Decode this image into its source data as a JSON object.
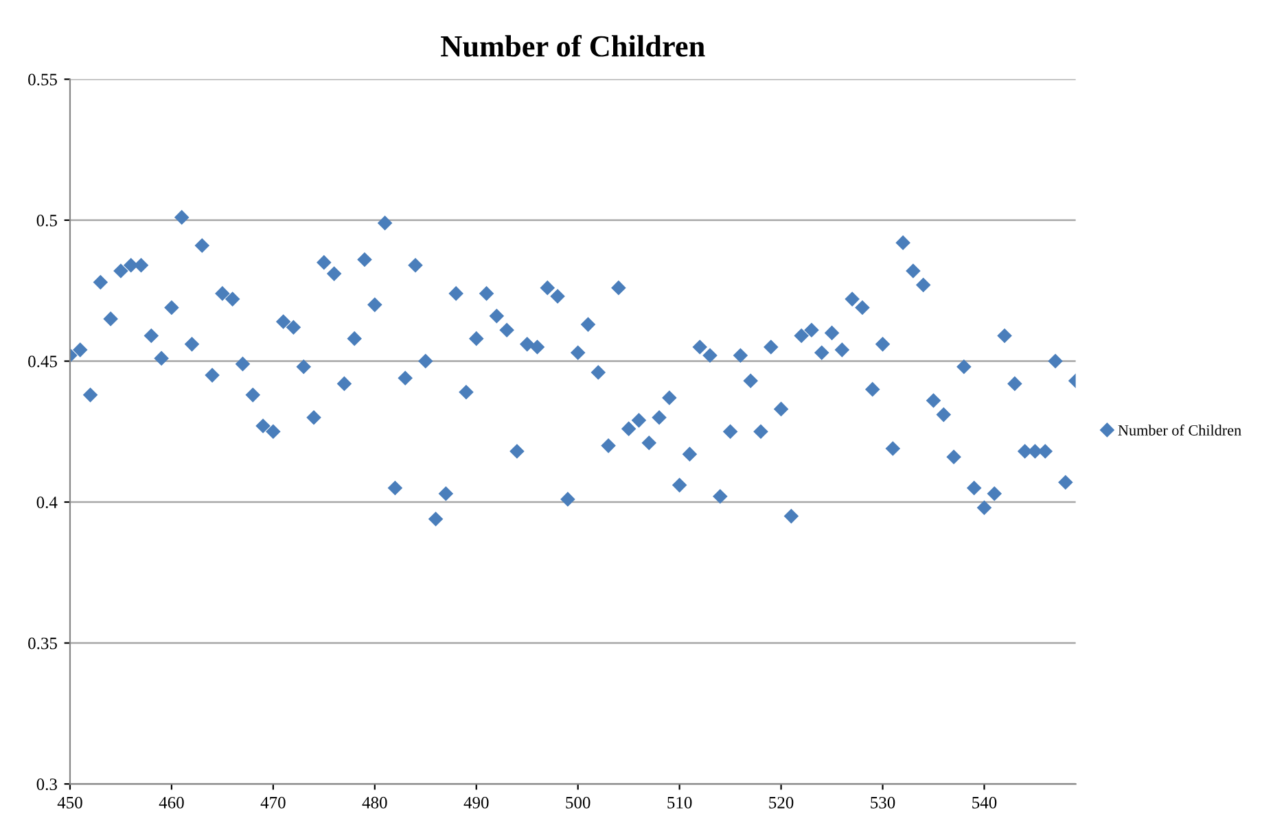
{
  "chart_data": {
    "type": "scatter",
    "title": "Number of Children",
    "x": [
      450,
      451,
      452,
      453,
      454,
      455,
      456,
      457,
      458,
      459,
      460,
      461,
      462,
      463,
      464,
      465,
      466,
      467,
      468,
      469,
      470,
      471,
      472,
      473,
      474,
      475,
      476,
      477,
      478,
      479,
      480,
      481,
      482,
      483,
      484,
      485,
      486,
      487,
      488,
      489,
      490,
      491,
      492,
      493,
      494,
      495,
      496,
      497,
      498,
      499,
      500,
      501,
      502,
      503,
      504,
      505,
      506,
      507,
      508,
      509,
      510,
      511,
      512,
      513,
      514,
      515,
      516,
      517,
      518,
      519,
      520,
      521,
      522,
      523,
      524,
      525,
      526,
      527,
      528,
      529,
      530,
      531,
      532,
      533,
      534,
      535,
      536,
      537,
      538,
      539,
      540,
      541,
      542,
      543,
      544,
      545,
      546,
      547,
      548,
      549
    ],
    "series": [
      {
        "name": "Number of Children",
        "color": "#4a7ebb",
        "values": [
          0.452,
          0.454,
          0.438,
          0.478,
          0.465,
          0.482,
          0.484,
          0.484,
          0.459,
          0.451,
          0.469,
          0.501,
          0.456,
          0.491,
          0.445,
          0.474,
          0.472,
          0.449,
          0.438,
          0.427,
          0.425,
          0.464,
          0.462,
          0.448,
          0.43,
          0.485,
          0.481,
          0.442,
          0.458,
          0.486,
          0.47,
          0.499,
          0.405,
          0.444,
          0.484,
          0.45,
          0.394,
          0.403,
          0.474,
          0.439,
          0.458,
          0.474,
          0.466,
          0.461,
          0.418,
          0.456,
          0.455,
          0.476,
          0.473,
          0.401,
          0.453,
          0.463,
          0.446,
          0.42,
          0.476,
          0.426,
          0.429,
          0.421,
          0.43,
          0.437,
          0.406,
          0.417,
          0.455,
          0.452,
          0.402,
          0.425,
          0.452,
          0.443,
          0.425,
          0.455,
          0.433,
          0.395,
          0.459,
          0.461,
          0.453,
          0.46,
          0.454,
          0.472,
          0.469,
          0.44,
          0.456,
          0.419,
          0.492,
          0.482,
          0.477,
          0.436,
          0.431,
          0.416,
          0.448,
          0.405,
          0.398,
          0.403,
          0.459,
          0.442,
          0.418,
          0.418,
          0.418,
          0.45,
          0.407,
          0.443
        ]
      }
    ],
    "xlim": [
      450,
      549
    ],
    "xticks": [
      450,
      460,
      470,
      480,
      490,
      500,
      510,
      520,
      530,
      540
    ],
    "ylim": [
      0.3,
      0.55
    ],
    "yticks": [
      0.3,
      0.35,
      0.4,
      0.45,
      0.5,
      0.55
    ],
    "grid": "y",
    "legend": "right",
    "marker": "diamond"
  }
}
